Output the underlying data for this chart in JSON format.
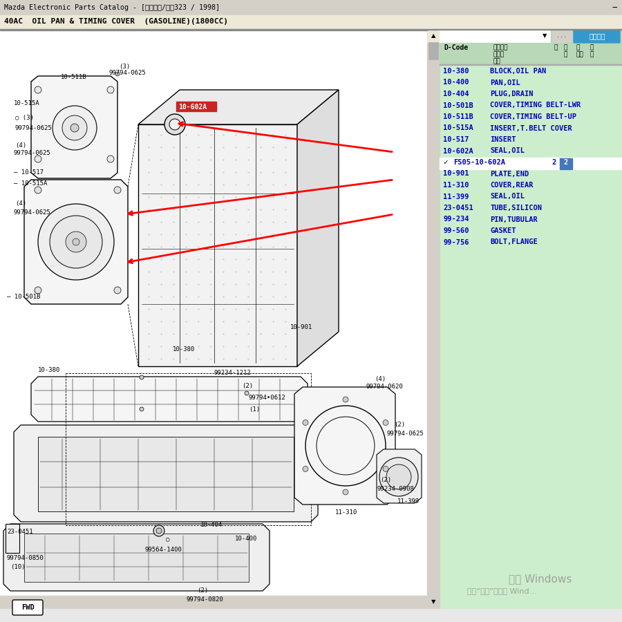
{
  "title_bar": "Mazda Electronic Parts Catalog - [目象图像/文本323 / 1998]",
  "section_title": "40AC  OIL PAN & TIMING COVER  (GASOLINE)(1800CC)",
  "bg_color": "#e8e8e8",
  "diagram_bg": "#ffffff",
  "right_panel_bg": "#cceecc",
  "highlight_color": "#cc2222",
  "arrow_color": "#cc0000",
  "text_color_blue": "#0000bb",
  "text_color_green": "#007700",
  "watermark_line1": "激活 Windows",
  "watermark_line2": "转到“设置”以激活 Wind...",
  "parts_list": [
    {
      "code": "10-380",
      "name": "BLOCK,OIL PAN",
      "sub": false
    },
    {
      "code": "10-400",
      "name": "PAN,OIL",
      "sub": false
    },
    {
      "code": "10-404",
      "name": "PLUG,DRAIN",
      "sub": false
    },
    {
      "code": "10-501B",
      "name": "COVER,TIMING BELT-LWR",
      "sub": false
    },
    {
      "code": "10-511B",
      "name": "COVER,TIMING BELT-UP",
      "sub": false
    },
    {
      "code": "10-515A",
      "name": "INSERT,T.BELT COVER",
      "sub": false
    },
    {
      "code": "10-517",
      "name": "INSERT",
      "sub": false
    },
    {
      "code": "10-602A",
      "name": "SEAL,OIL",
      "sub": false
    },
    {
      "code": "✓",
      "name": "FS05-10-602A",
      "sub": true,
      "qty": "2"
    },
    {
      "code": "10-901",
      "name": "PLATE,END",
      "sub": false
    },
    {
      "code": "11-310",
      "name": "COVER,REAR",
      "sub": false
    },
    {
      "code": "11-399",
      "name": "SEAL,OIL",
      "sub": false
    },
    {
      "code": "23-0451",
      "name": "TUBE,SILICON",
      "sub": false
    },
    {
      "code": "99-234",
      "name": "PIN,TUBULAR",
      "sub": false
    },
    {
      "code": "99-560",
      "name": "GASKET",
      "sub": false
    },
    {
      "code": "99-756",
      "name": "BOLT,FLANGE",
      "sub": false
    }
  ]
}
